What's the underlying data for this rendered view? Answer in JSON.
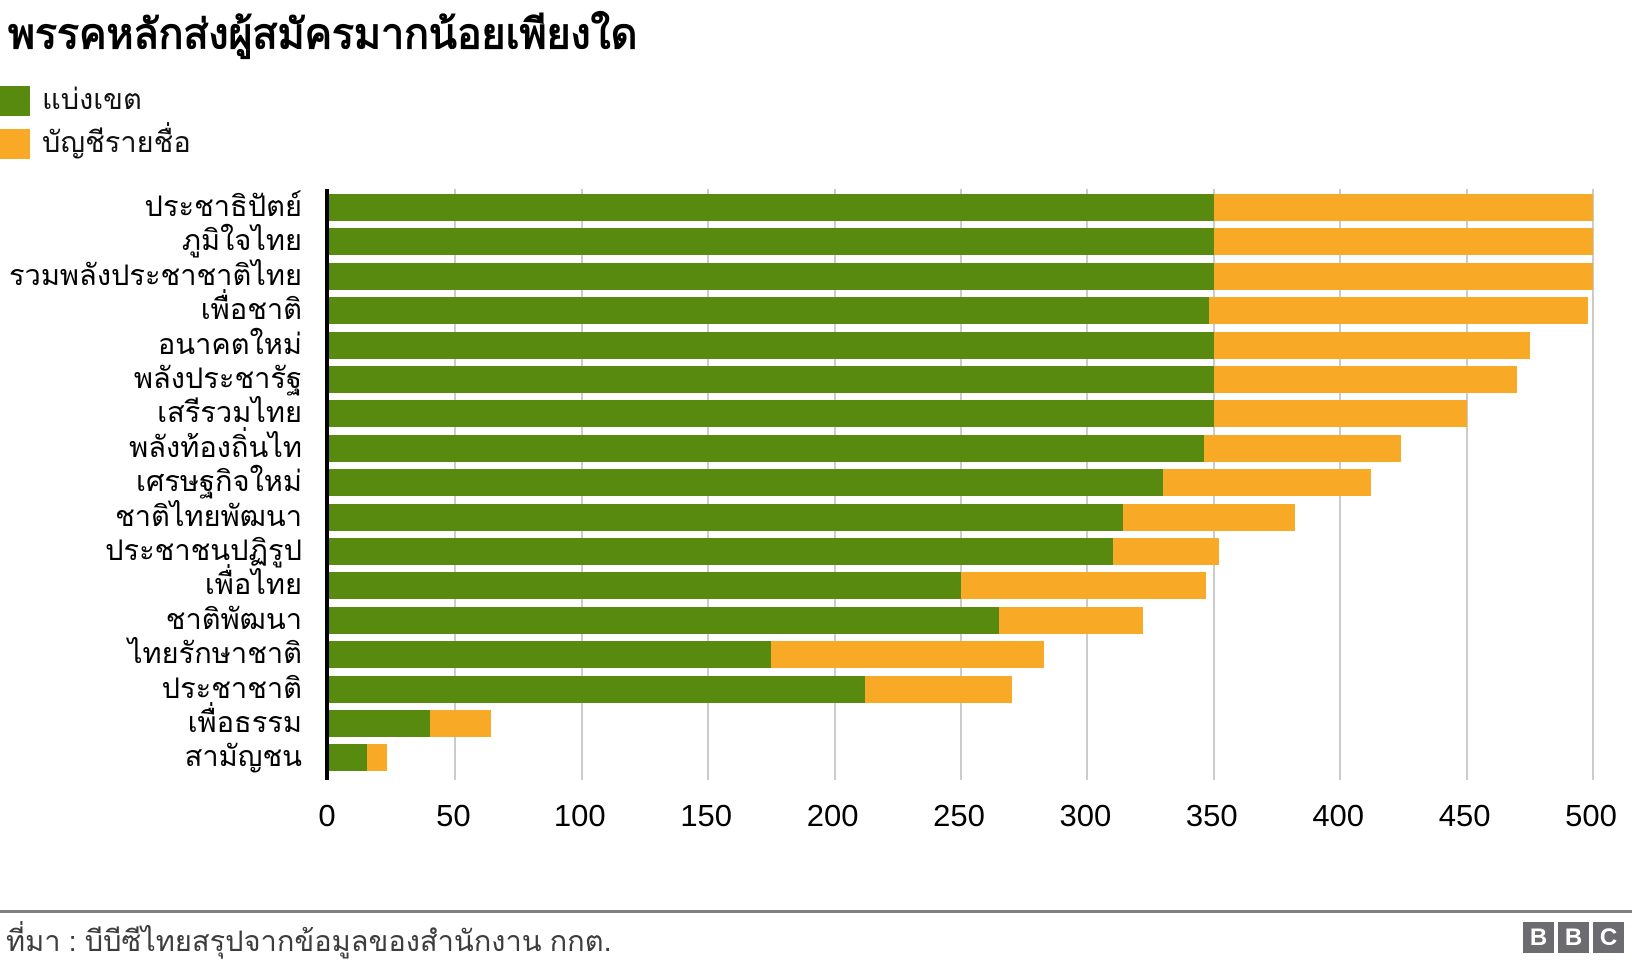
{
  "title": "พรรคหลักส่งผู้สมัครมากน้อยเพียงใด",
  "legend": [
    {
      "label": "แบ่งเขต",
      "color": "#588a10"
    },
    {
      "label": "บัญชีรายชื่อ",
      "color": "#f8a925"
    }
  ],
  "footer": {
    "source": "ที่มา : บีบีซีไทยสรุปจากข้อมูลของสำนักงาน กกต.",
    "logo_letters": [
      "B",
      "B",
      "C"
    ]
  },
  "colors": {
    "constituency_green": "#588a10",
    "partylist_orange": "#f8a925",
    "gridline_gray": "#cccccc",
    "axis_black": "#000000",
    "footer_gray": "#3d3d3d"
  },
  "chart_data": {
    "type": "bar",
    "orientation": "horizontal",
    "stacked": true,
    "title": "พรรคหลักส่งผู้สมัครมากน้อยเพียงใด",
    "categories": [
      "ประชาธิปัตย์",
      "ภูมิใจไทย",
      "รวมพลังประชาชาติไทย",
      "เพื่อชาติ",
      "อนาคตใหม่",
      "พลังประชารัฐ",
      "เสรีรวมไทย",
      "พลังท้องถิ่นไท",
      "เศรษฐกิจใหม่",
      "ชาติไทยพัฒนา",
      "ประชาชนปฏิรูป",
      "เพื่อไทย",
      "ชาติพัฒนา",
      "ไทยรักษาชาติ",
      "ประชาชาติ",
      "เพื่อธรรม",
      "สามัญชน"
    ],
    "series": [
      {
        "name": "แบ่งเขต",
        "color": "#588a10",
        "values": [
          350,
          350,
          350,
          348,
          350,
          350,
          350,
          346,
          330,
          314,
          310,
          250,
          265,
          175,
          212,
          40,
          15
        ]
      },
      {
        "name": "บัญชีรายชื่อ",
        "color": "#f8a925",
        "values": [
          150,
          150,
          150,
          150,
          125,
          120,
          100,
          78,
          82,
          68,
          42,
          97,
          57,
          108,
          58,
          24,
          8
        ]
      }
    ],
    "xlabel": "",
    "ylabel": "",
    "xlim": [
      0,
      500
    ],
    "xticks": [
      0,
      50,
      100,
      150,
      200,
      250,
      300,
      350,
      400,
      450,
      500
    ],
    "grid": true,
    "legend_position": "top-left"
  }
}
